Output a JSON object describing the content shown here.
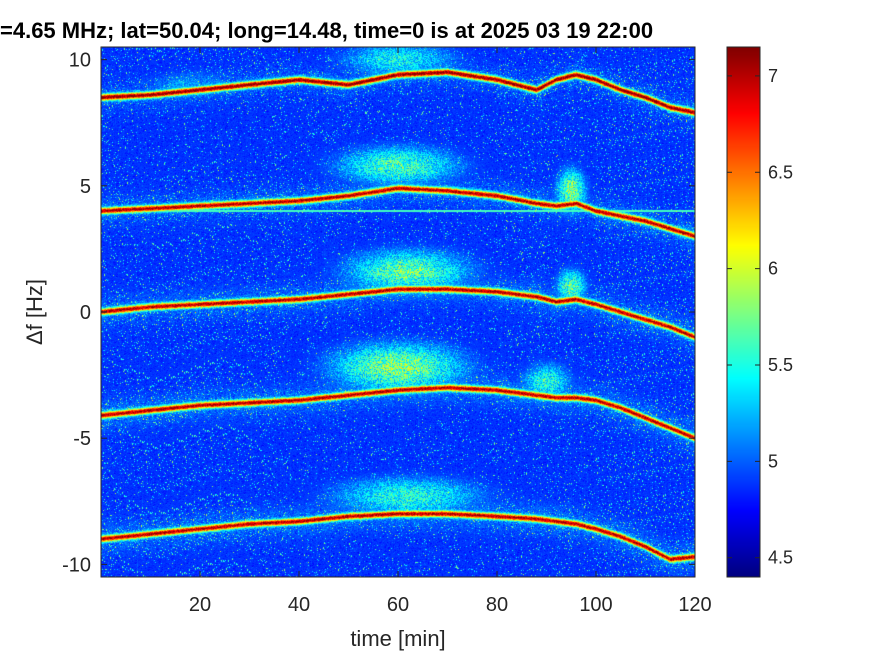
{
  "chart_data": {
    "type": "heatmap",
    "title": "=4.65 MHz;  lat=50.04; long=14.48, time=0 is at 2025 03 19 22:00",
    "xlabel": "time [min]",
    "ylabel": "Δf [Hz]",
    "xlim": [
      0,
      120
    ],
    "ylim": [
      -10.5,
      10.5
    ],
    "x_ticks": [
      20,
      40,
      60,
      80,
      100,
      120
    ],
    "y_ticks": [
      10,
      5,
      0,
      -5,
      -10
    ],
    "colorbar": {
      "range": [
        4.4,
        7.15
      ],
      "ticks": [
        7,
        6.5,
        6,
        5.5,
        5,
        4.5
      ],
      "colormap": "jet"
    },
    "background_level": 4.7,
    "horizontal_artifact": {
      "y": 4.0,
      "level": 5.6
    },
    "series": [
      {
        "x": [
          0,
          10,
          20,
          30,
          40,
          50,
          60,
          70,
          80,
          88,
          92,
          96,
          100,
          105,
          110,
          115,
          120
        ],
        "y": [
          8.5,
          8.6,
          8.8,
          9.0,
          9.2,
          9.0,
          9.4,
          9.5,
          9.2,
          8.8,
          9.2,
          9.4,
          9.2,
          8.8,
          8.5,
          8.1,
          7.9
        ],
        "level": 6.9
      },
      {
        "x": [
          0,
          10,
          20,
          30,
          40,
          50,
          60,
          70,
          80,
          88,
          92,
          96,
          100,
          105,
          110,
          115,
          120
        ],
        "y": [
          4.0,
          4.1,
          4.2,
          4.3,
          4.4,
          4.6,
          4.9,
          4.8,
          4.6,
          4.3,
          4.2,
          4.3,
          4.0,
          3.8,
          3.6,
          3.3,
          3.0
        ],
        "level": 6.8
      },
      {
        "x": [
          0,
          10,
          20,
          30,
          40,
          50,
          60,
          70,
          80,
          88,
          92,
          96,
          100,
          105,
          110,
          115,
          120
        ],
        "y": [
          0.0,
          0.2,
          0.3,
          0.4,
          0.5,
          0.7,
          0.9,
          0.9,
          0.8,
          0.6,
          0.4,
          0.5,
          0.3,
          0.0,
          -0.3,
          -0.6,
          -1.0
        ],
        "level": 6.8
      },
      {
        "x": [
          0,
          10,
          20,
          30,
          40,
          50,
          60,
          70,
          80,
          88,
          92,
          96,
          100,
          105,
          110,
          115,
          120
        ],
        "y": [
          -4.1,
          -3.9,
          -3.7,
          -3.6,
          -3.5,
          -3.3,
          -3.1,
          -3.0,
          -3.1,
          -3.3,
          -3.4,
          -3.4,
          -3.5,
          -3.8,
          -4.2,
          -4.6,
          -5.0
        ],
        "level": 6.8
      },
      {
        "x": [
          0,
          10,
          20,
          30,
          40,
          50,
          60,
          70,
          80,
          88,
          92,
          96,
          100,
          105,
          110,
          115,
          120
        ],
        "y": [
          -9.0,
          -8.8,
          -8.6,
          -8.4,
          -8.3,
          -8.1,
          -8.0,
          -8.0,
          -8.1,
          -8.2,
          -8.3,
          -8.4,
          -8.6,
          -8.9,
          -9.3,
          -9.8,
          -9.7
        ],
        "level": 6.8
      }
    ],
    "diffuse_regions": [
      {
        "x": 60,
        "y": 10.0,
        "sx": 12,
        "sy": 0.7,
        "level": 5.5
      },
      {
        "x": 60,
        "y": 5.8,
        "sx": 13,
        "sy": 0.8,
        "level": 5.7
      },
      {
        "x": 95,
        "y": 4.8,
        "sx": 3,
        "sy": 0.9,
        "level": 5.9
      },
      {
        "x": 62,
        "y": 1.6,
        "sx": 13,
        "sy": 0.9,
        "level": 5.8
      },
      {
        "x": 95,
        "y": 1.0,
        "sx": 3,
        "sy": 0.7,
        "level": 5.8
      },
      {
        "x": 60,
        "y": -2.2,
        "sx": 14,
        "sy": 1.0,
        "level": 5.9
      },
      {
        "x": 90,
        "y": -2.8,
        "sx": 5,
        "sy": 0.8,
        "level": 5.6
      },
      {
        "x": 62,
        "y": -7.3,
        "sx": 16,
        "sy": 0.8,
        "level": 5.6
      },
      {
        "x": 18,
        "y": 9.0,
        "sx": 10,
        "sy": 0.6,
        "level": 5.2
      }
    ]
  }
}
